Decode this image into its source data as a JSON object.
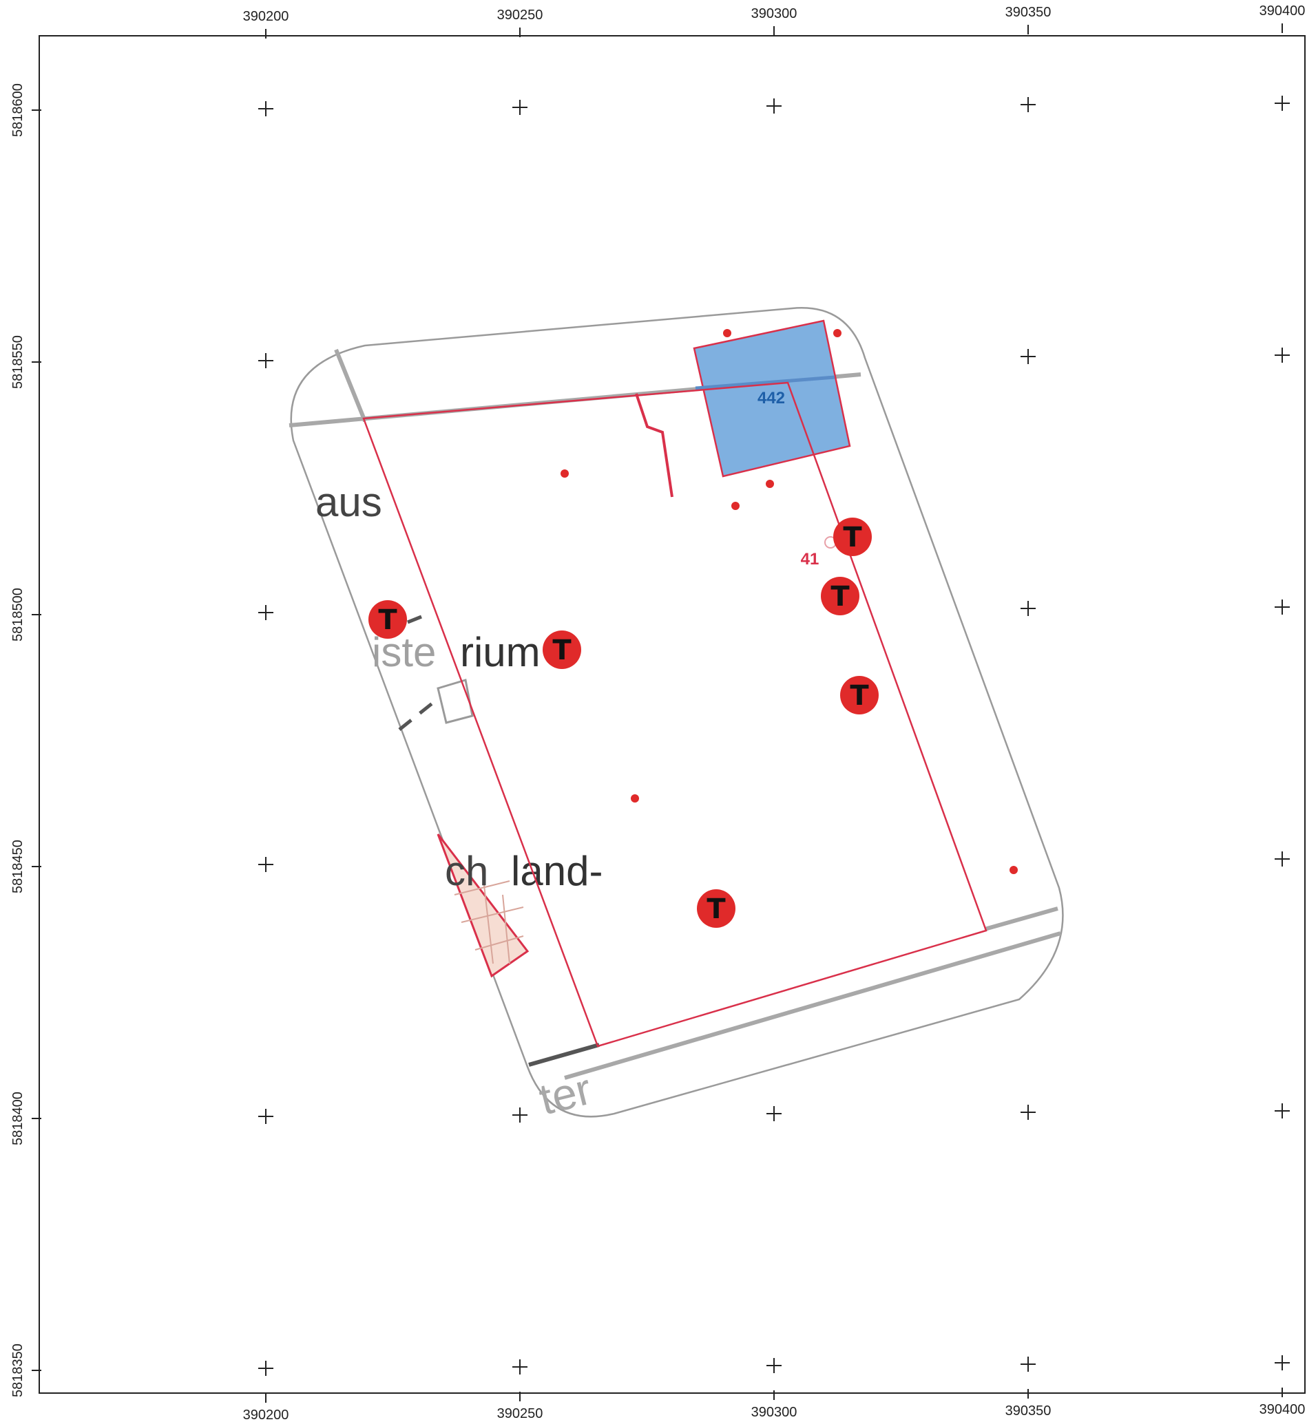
{
  "x_axis": {
    "ticks": [
      "390200",
      "390250",
      "390300",
      "390350",
      "390400"
    ]
  },
  "y_axis": {
    "ticks": [
      "5818600",
      "5818550",
      "5818500",
      "5818450",
      "5818400",
      "5818350"
    ]
  },
  "map_labels": {
    "parcel_number": "442",
    "point_number": "41",
    "street_fragment_1": "aus",
    "street_fragment_2": "iste",
    "street_fragment_3": "rium",
    "street_fragment_4": "ch",
    "street_fragment_5": "land-",
    "street_fragment_6": "ter"
  },
  "markers": {
    "tree_letter": "T"
  },
  "colors": {
    "parcel_fill": "#7fb0e0",
    "boundary_red": "#d9304a",
    "marker_red": "#e02a2a",
    "street_gray": "#a8a8a8",
    "text_blue": "#1e5fa8"
  }
}
